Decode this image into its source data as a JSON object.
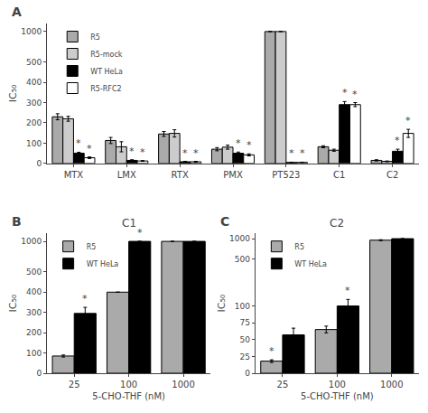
{
  "chart_data": [
    {
      "type": "bar",
      "categories": [
        "MTX",
        "LMX",
        "RTX",
        "PMX",
        "PT523",
        "C1",
        "C2"
      ],
      "series": [
        {
          "name": "R5",
          "color": "#aaaaaa",
          "values": [
            230,
            113,
            145,
            70,
            1000,
            82,
            15
          ],
          "errors": [
            15,
            15,
            12,
            8,
            0,
            5,
            3
          ]
        },
        {
          "name": "R5-mock",
          "color": "#cccccc",
          "values": [
            220,
            82,
            148,
            80,
            1000,
            65,
            10
          ],
          "errors": [
            12,
            25,
            18,
            10,
            0,
            5,
            2
          ]
        },
        {
          "name": "WT HeLa",
          "color": "#000000",
          "values": [
            50,
            15,
            8,
            50,
            5,
            290,
            60
          ],
          "errors": [
            5,
            3,
            2,
            6,
            1,
            15,
            10
          ]
        },
        {
          "name": "R5-RFC2",
          "color": "#ffffff",
          "values": [
            28,
            12,
            8,
            42,
            5,
            290,
            148
          ],
          "errors": [
            4,
            2,
            2,
            5,
            1,
            10,
            20
          ]
        }
      ],
      "ylabel": "IC₅₀",
      "ylim": [
        0,
        1200
      ],
      "yticks": [
        0,
        100,
        200,
        300,
        400,
        500,
        1000
      ],
      "log": "y",
      "grid": false,
      "legend": "upper left",
      "annotations": [
        {
          "text": "A"
        },
        {
          "text": "*",
          "category": "MTX",
          "series": "WT HeLa"
        },
        {
          "text": "*",
          "category": "LMX",
          "series": "WT HeLa"
        },
        {
          "text": "*",
          "category": "RTX",
          "series": "WT HeLa"
        },
        {
          "text": "*",
          "category": "PMX",
          "series": "WT HeLa"
        },
        {
          "text": "*",
          "category": "PT523",
          "series": "WT HeLa"
        },
        {
          "text": "*",
          "category": "C1",
          "series": "WT HeLa"
        },
        {
          "text": "*",
          "category": "C2",
          "series": "WT HeLa"
        },
        {
          "text": "*",
          "category": "MTX",
          "series": "R5-RFC2"
        },
        {
          "text": "*",
          "category": "LMX",
          "series": "R5-RFC2"
        },
        {
          "text": "*",
          "category": "RTX",
          "series": "R5-RFC2"
        },
        {
          "text": "*",
          "category": "PMX",
          "series": "R5-RFC2"
        },
        {
          "text": "*",
          "category": "PT523",
          "series": "R5-RFC2"
        },
        {
          "text": "*",
          "category": "C1",
          "series": "R5-RFC2"
        },
        {
          "text": "*",
          "category": "C2",
          "series": "R5-RFC2"
        }
      ]
    },
    {
      "type": "bar",
      "title": "C1",
      "categories": [
        "25",
        "100",
        "1000"
      ],
      "series": [
        {
          "name": "R5",
          "color": "#aaaaaa",
          "values": [
            85,
            400,
            1000
          ],
          "errors": [
            5,
            0,
            0
          ]
        },
        {
          "name": "WT HeLa",
          "color": "#000000",
          "values": [
            295,
            1000,
            1000
          ],
          "errors": [
            30,
            0,
            0
          ]
        }
      ],
      "xlabel": "5-CHO-THF (nM)",
      "ylabel": "IC₅₀",
      "ylim": [
        0,
        1200
      ],
      "yticks": [
        0,
        100,
        200,
        300,
        400,
        500,
        1000
      ],
      "log": "y",
      "grid": false,
      "legend": "upper left",
      "annotations": [
        {
          "text": "B"
        },
        {
          "text": "*",
          "category": "25",
          "series": "WT HeLa"
        },
        {
          "text": "*",
          "category": "100",
          "series": "WT HeLa"
        }
      ]
    },
    {
      "type": "bar",
      "title": "C2",
      "categories": [
        "25",
        "100",
        "1000"
      ],
      "series": [
        {
          "name": "R5",
          "color": "#aaaaaa",
          "values": [
            18,
            65,
            950
          ],
          "errors": [
            2,
            5,
            15
          ]
        },
        {
          "name": "WT HeLa",
          "color": "#000000",
          "values": [
            57,
            100,
            1000
          ],
          "errors": [
            10,
            25,
            0
          ]
        }
      ],
      "xlabel": "5-CHO-THF (nM)",
      "ylabel": "IC₅₀",
      "ylim": [
        0,
        1200
      ],
      "yticks": [
        0,
        25,
        50,
        75,
        100,
        500,
        1000
      ],
      "log": "y",
      "grid": false,
      "legend": "upper left",
      "annotations": [
        {
          "text": "C"
        },
        {
          "text": "*",
          "category": "25",
          "series": "R5"
        },
        {
          "text": "*",
          "category": "100",
          "series": "WT HeLa"
        }
      ]
    }
  ]
}
